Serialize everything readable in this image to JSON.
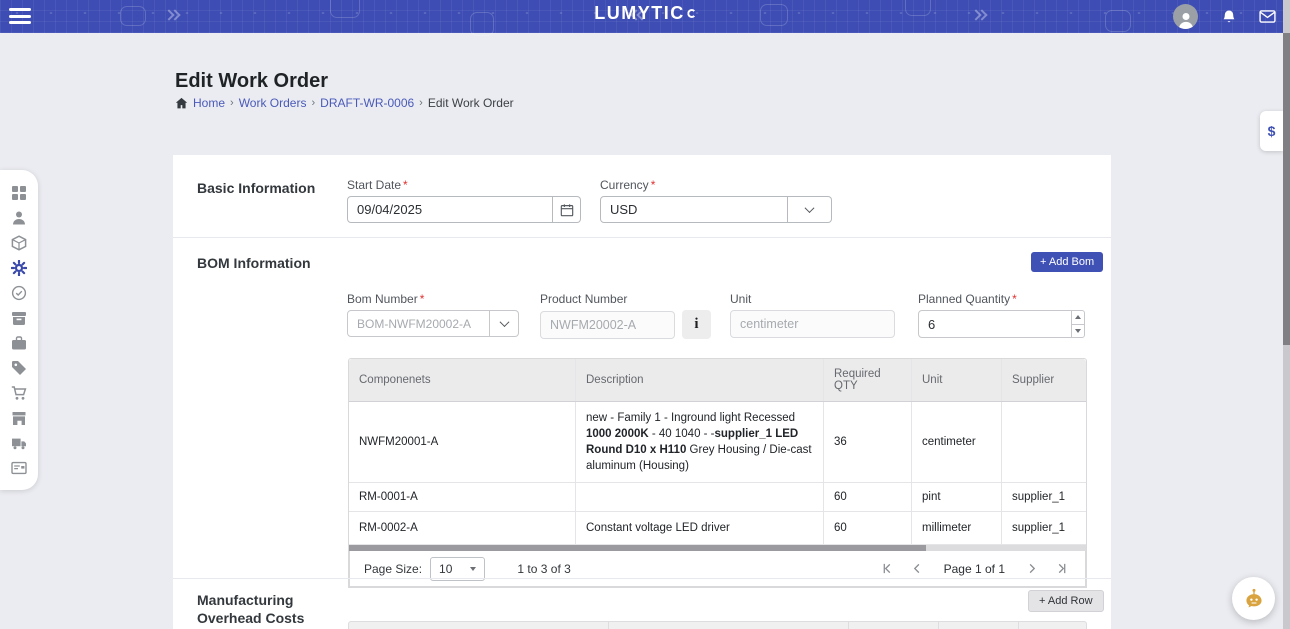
{
  "colors": {
    "accent": "#3f51b5",
    "link": "#4a5ab9",
    "required": "#e03131",
    "robot": "#d9a440"
  },
  "navbar": {
    "logo_text": "LUMYTIC"
  },
  "page": {
    "title": "Edit Work Order"
  },
  "breadcrumb": {
    "separator": "›",
    "items": [
      "Home",
      "Work Orders",
      "DRAFT-WR-0006",
      "Edit Work Order"
    ]
  },
  "sidebar": {
    "items": [
      {
        "name": "dashboard-icon",
        "active": false
      },
      {
        "name": "user-icon",
        "active": false
      },
      {
        "name": "package-icon",
        "active": false
      },
      {
        "name": "production-gear-icon",
        "active": true
      },
      {
        "name": "quality-check-icon",
        "active": false
      },
      {
        "name": "inventory-icon",
        "active": false
      },
      {
        "name": "toolbox-icon",
        "active": false
      },
      {
        "name": "tag-icon",
        "active": false
      },
      {
        "name": "cart-icon",
        "active": false
      },
      {
        "name": "store-icon",
        "active": false
      },
      {
        "name": "truck-icon",
        "active": false
      },
      {
        "name": "billing-icon",
        "active": false
      }
    ]
  },
  "basic_information": {
    "section_title": "Basic Information",
    "start_date": {
      "label": "Start Date",
      "value": "09/04/2025"
    },
    "currency": {
      "label": "Currency",
      "value": "USD"
    }
  },
  "bom_information": {
    "section_title": "BOM Information",
    "add_bom_label": "+ Add Bom",
    "fields": {
      "bom_number": {
        "label": "Bom Number",
        "value": "BOM-NWFM20002-A"
      },
      "product_number": {
        "label": "Product Number",
        "value": "NWFM20002-A"
      },
      "unit": {
        "label": "Unit",
        "value": "centimeter"
      },
      "planned_quantity": {
        "label": "Planned Quantity",
        "value": "6"
      }
    },
    "table": {
      "columns": [
        "Componenets",
        "Description",
        "Required QTY",
        "Unit",
        "Supplier"
      ],
      "rows": [
        {
          "component": "NWFM20001-A",
          "description_parts": [
            {
              "text": "new - Family 1 - Inground light Recessed ",
              "bold": false
            },
            {
              "text": "1000 2000K",
              "bold": true
            },
            {
              "text": " - 40 1040 - -",
              "bold": false
            },
            {
              "text": "supplier_1 LED Round D10 x H110",
              "bold": true
            },
            {
              "text": " Grey Housing / Die-cast aluminum (Housing)",
              "bold": false
            }
          ],
          "required_qty": "36",
          "unit": "centimeter",
          "supplier": ""
        },
        {
          "component": "RM-0001-A",
          "description_parts": [],
          "required_qty": "60",
          "unit": "pint",
          "supplier": "supplier_1"
        },
        {
          "component": "RM-0002-A",
          "description_parts": [
            {
              "text": "Constant voltage LED driver",
              "bold": false
            }
          ],
          "required_qty": "60",
          "unit": "millimeter",
          "supplier": "supplier_1"
        }
      ]
    },
    "pagination": {
      "page_size_label": "Page Size:",
      "page_size_value": "10",
      "range_text": "1 to 3 of 3",
      "page_text": "Page 1 of 1"
    }
  },
  "manufacturing_overhead": {
    "section_title": "Manufacturing Overhead Costs",
    "add_row_label": "+ Add Row"
  },
  "floating": {
    "currency_tab_label": "$"
  }
}
